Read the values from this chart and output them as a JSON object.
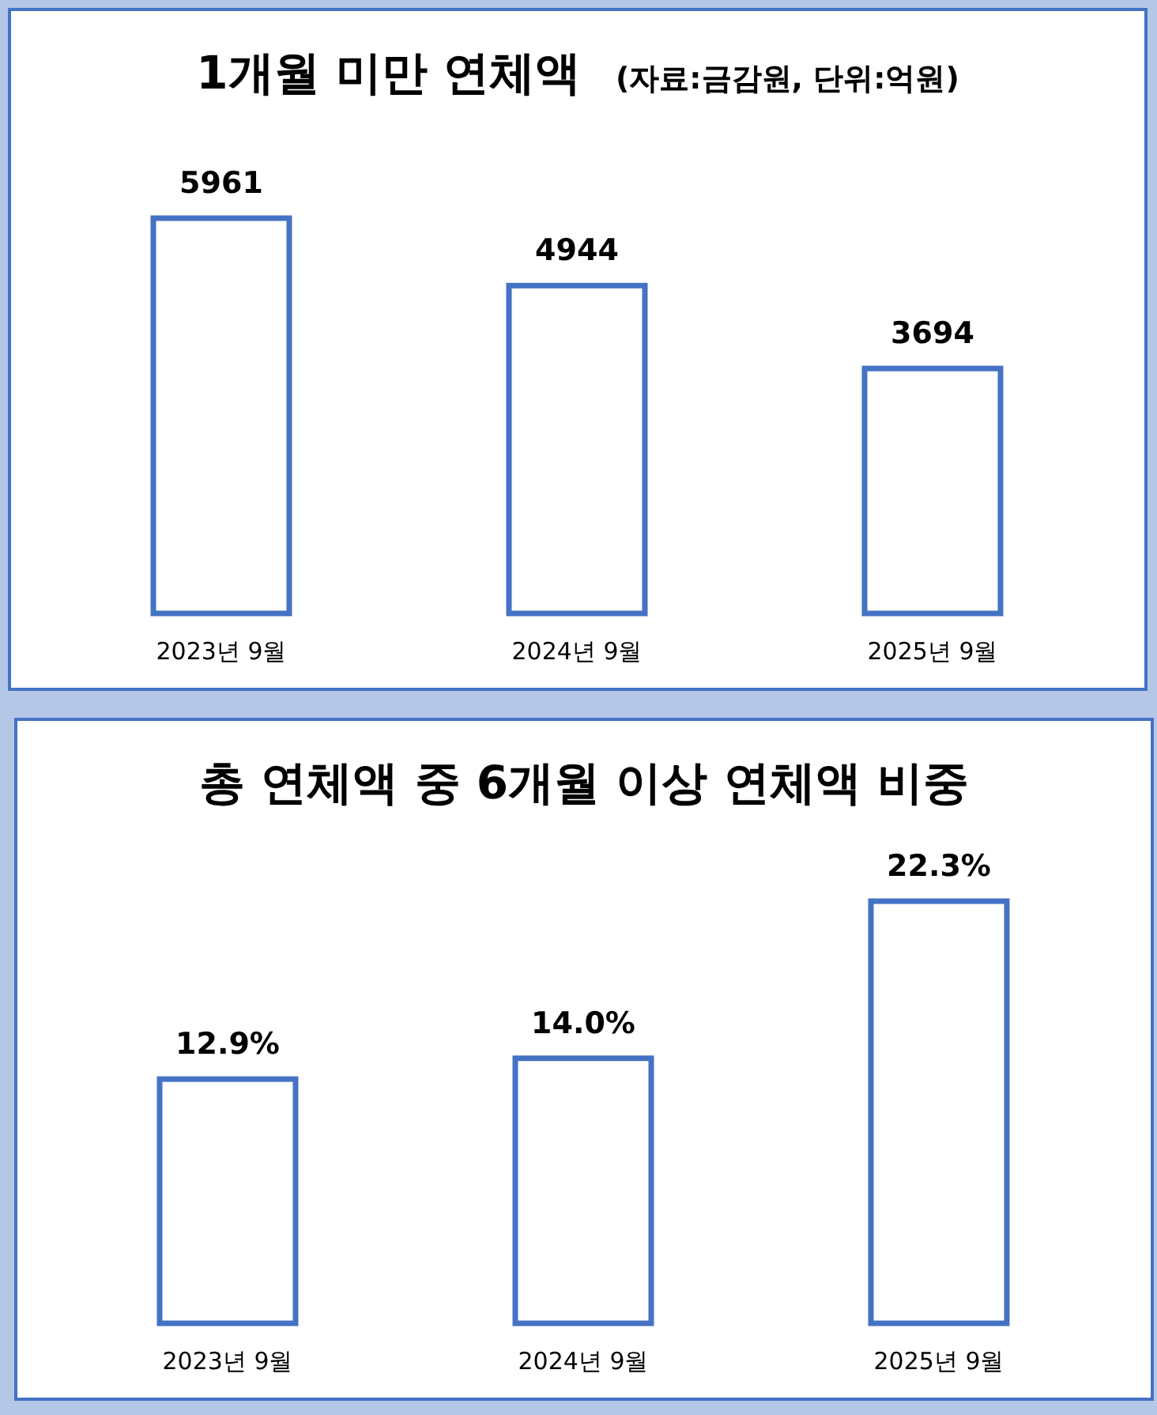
{
  "chart_data": [
    {
      "type": "bar",
      "title": "1개월 미만 연체액",
      "subtitle": "(자료:금감원, 단위:억원)",
      "categories": [
        "2023년 9월",
        "2024년 9월",
        "2025년 9월"
      ],
      "values": [
        5961,
        4944,
        3694
      ],
      "color": "#4472c4",
      "data_labels": true
    },
    {
      "type": "bar",
      "title": "총 연체액 중 6개월 이상 연체액 비중",
      "categories": [
        "2023년 9월",
        "2024년 9월",
        "2025년 9월"
      ],
      "values": [
        12.9,
        14.0,
        22.3
      ],
      "color": "#4472c4",
      "value_labels": [
        "12.9%",
        "14.0%",
        "22.3%"
      ]
    }
  ]
}
